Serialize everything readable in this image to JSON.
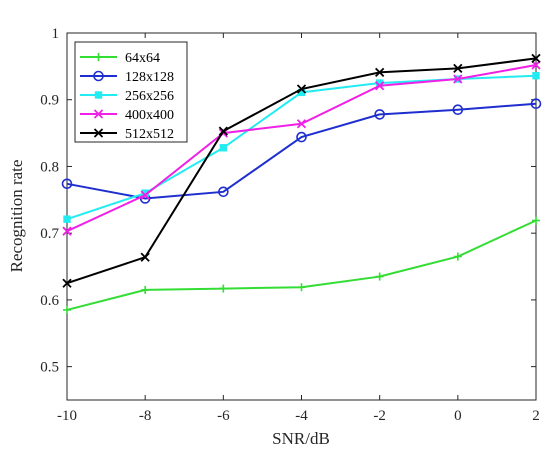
{
  "chart_data": {
    "type": "line",
    "title": "",
    "xlabel": "SNR/dB",
    "ylabel": "Recognition rate",
    "x": [
      -10,
      -8,
      -6,
      -4,
      -2,
      0,
      2
    ],
    "xticks": [
      "-10",
      "-8",
      "-6",
      "-4",
      "-2",
      "0",
      "2"
    ],
    "yticks": [
      "0.5",
      "0.6",
      "0.7",
      "0.8",
      "0.9",
      "1"
    ],
    "xlim": [
      -10,
      2
    ],
    "ylim": [
      0.45,
      1.0
    ],
    "grid": false,
    "legend_position": "top-left",
    "series": [
      {
        "name": "64x64",
        "color": "#33dd33",
        "marker": "plus",
        "values": [
          0.585,
          0.615,
          0.617,
          0.619,
          0.635,
          0.665,
          0.719
        ]
      },
      {
        "name": "128x128",
        "color": "#1f2fcf",
        "marker": "circle",
        "values": [
          0.774,
          0.752,
          0.762,
          0.844,
          0.878,
          0.885,
          0.894
        ]
      },
      {
        "name": "256x256",
        "color": "#22ecf2",
        "marker": "square",
        "values": [
          0.721,
          0.76,
          0.828,
          0.911,
          0.925,
          0.931,
          0.936
        ]
      },
      {
        "name": "400x400",
        "color": "#f020e6",
        "marker": "x",
        "values": [
          0.703,
          0.757,
          0.85,
          0.864,
          0.921,
          0.931,
          0.952
        ]
      },
      {
        "name": "512x512",
        "color": "#000000",
        "marker": "x",
        "values": [
          0.625,
          0.664,
          0.853,
          0.916,
          0.941,
          0.947,
          0.962
        ]
      }
    ]
  }
}
